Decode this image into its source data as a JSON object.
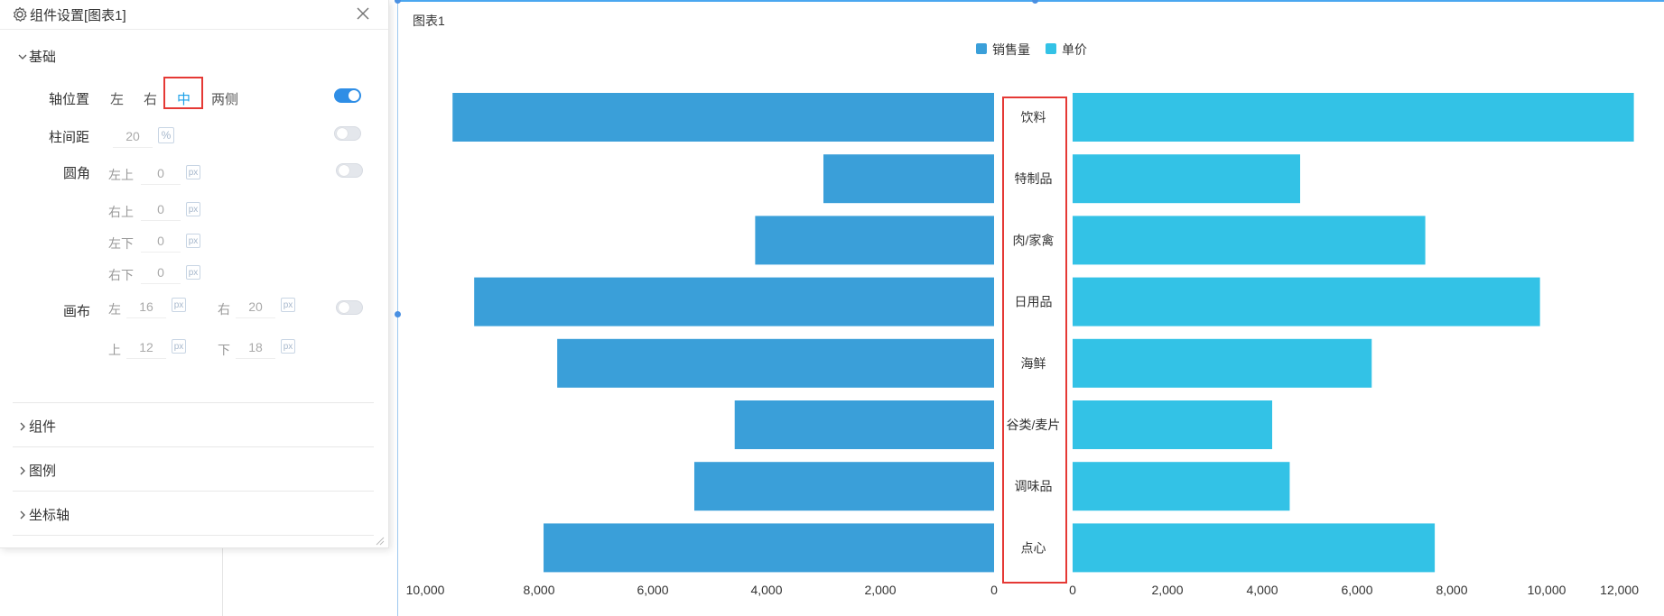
{
  "panel": {
    "title": "组件设置[图表1]",
    "section_basic": "基础",
    "axis_position": {
      "label": "轴位置",
      "options": [
        "左",
        "右",
        "中",
        "两侧"
      ],
      "selected": "中",
      "toggle_on": true
    },
    "bar_spacing": {
      "label": "柱间距",
      "value": "20",
      "unit": "%",
      "toggle_on": false
    },
    "corner": {
      "label": "圆角",
      "fields": [
        {
          "label": "左上",
          "value": "0",
          "unit": "px"
        },
        {
          "label": "右上",
          "value": "0",
          "unit": "px"
        },
        {
          "label": "左下",
          "value": "0",
          "unit": "px"
        },
        {
          "label": "右下",
          "value": "0",
          "unit": "px"
        }
      ],
      "toggle_on": false
    },
    "canvas": {
      "label": "画布",
      "left_label": "左",
      "left_value": "16",
      "right_label": "右",
      "right_value": "20",
      "top_label": "上",
      "top_value": "12",
      "bottom_label": "下",
      "bottom_value": "18",
      "unit": "px",
      "toggle_on": false
    },
    "collapsed_sections": [
      "组件",
      "图例",
      "坐标轴"
    ]
  },
  "chart": {
    "name": "图表1",
    "colors": {
      "sales": "#3a9fd9",
      "price": "#33c2e6",
      "highlight": "#e53935",
      "selection": "#4aa7f0"
    }
  },
  "chart_data": {
    "type": "bar",
    "orientation": "horizontal-butterfly",
    "categories": [
      "饮料",
      "特制品",
      "肉/家禽",
      "日用品",
      "海鲜",
      "谷类/麦片",
      "调味品",
      "点心"
    ],
    "series": [
      {
        "name": "销售量",
        "values": [
          9520,
          3000,
          4200,
          9140,
          7680,
          4560,
          5270,
          7920
        ]
      },
      {
        "name": "单价",
        "values": [
          11840,
          4800,
          7440,
          9860,
          6310,
          4210,
          4580,
          7640
        ]
      }
    ],
    "left_axis": {
      "range": [
        0,
        10000
      ],
      "reversed": true,
      "ticks": [
        "10,000",
        "8,000",
        "6,000",
        "4,000",
        "2,000",
        "0"
      ]
    },
    "right_axis": {
      "range": [
        0,
        12000
      ],
      "ticks": [
        "0",
        "2,000",
        "4,000",
        "6,000",
        "8,000",
        "10,000",
        "12,000"
      ]
    },
    "legend_position": "top-center",
    "grid": false
  }
}
